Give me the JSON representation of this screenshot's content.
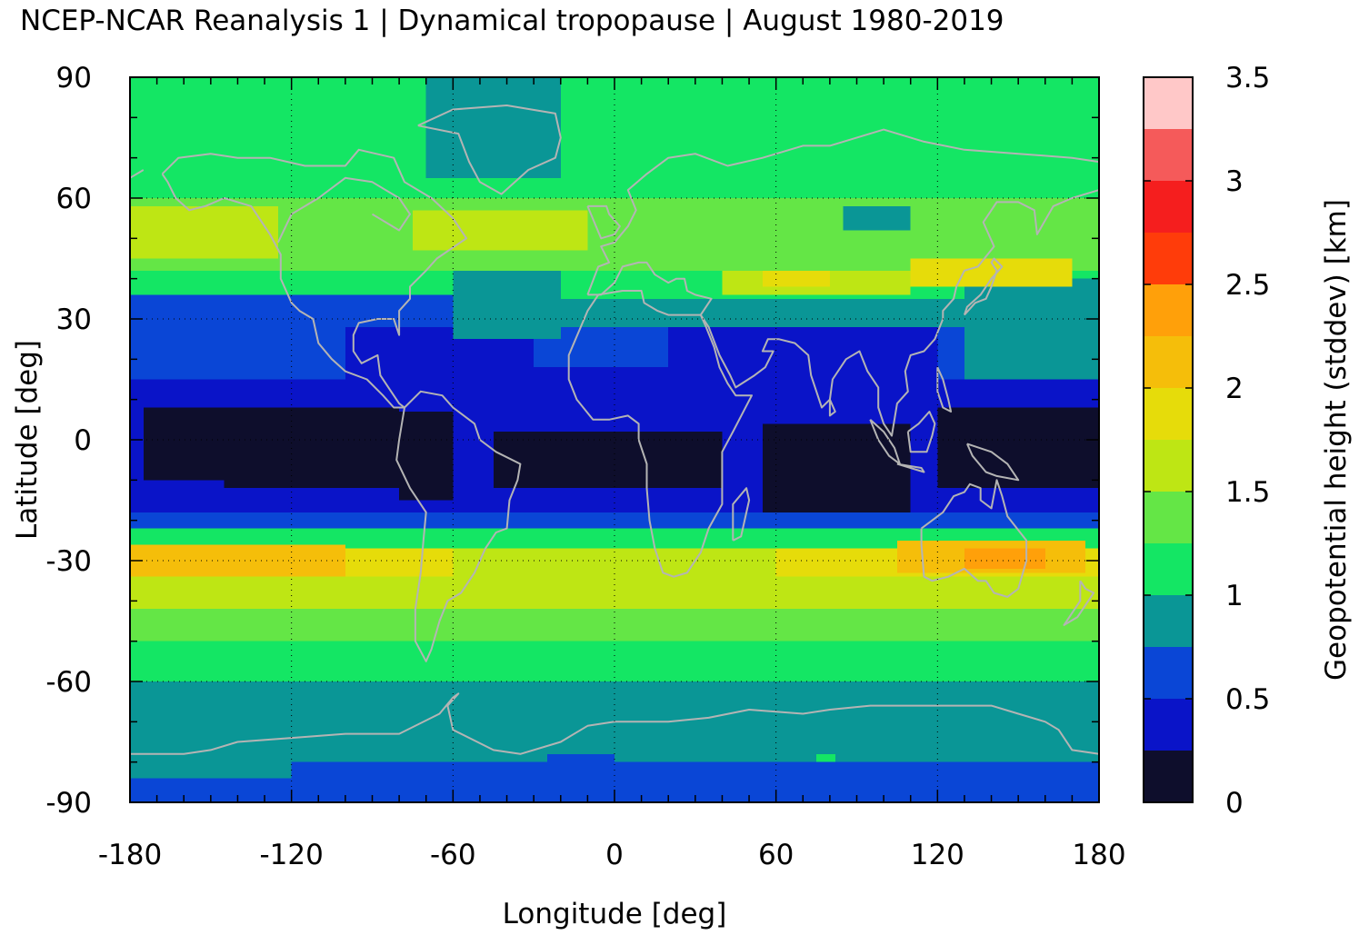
{
  "chart_data": {
    "type": "heatmap",
    "title": "NCEP-NCAR Reanalysis 1 | Dynamical tropopause | August 1980-2019",
    "xlabel": "Longitude [deg]",
    "ylabel": "Latitude [deg]",
    "xlim": [
      -180,
      180
    ],
    "ylim": [
      -90,
      90
    ],
    "x_ticks": [
      "-180",
      "-120",
      "-60",
      "0",
      "60",
      "120",
      "180"
    ],
    "y_ticks": [
      "90",
      "60",
      "30",
      "0",
      "-30",
      "-60",
      "-90"
    ],
    "grid": true,
    "grid_style": "dotted",
    "coastlines": true,
    "coastline_color": "#b4b4b4",
    "colorbar": {
      "label": "Geopotential height (stddev) [km]",
      "placement": "right",
      "range": [
        0,
        3.5
      ],
      "ticks": [
        "0",
        "0.5",
        "1",
        "1.5",
        "2",
        "2.5",
        "3",
        "3.5"
      ],
      "levels": [
        {
          "from": 0.0,
          "to": 0.25,
          "color": "#0e0e2c"
        },
        {
          "from": 0.25,
          "to": 0.5,
          "color": "#0a14c8"
        },
        {
          "from": 0.5,
          "to": 0.75,
          "color": "#0a46d6"
        },
        {
          "from": 0.75,
          "to": 1.0,
          "color": "#0a9696"
        },
        {
          "from": 1.0,
          "to": 1.25,
          "color": "#14e664"
        },
        {
          "from": 1.25,
          "to": 1.5,
          "color": "#64e646"
        },
        {
          "from": 1.5,
          "to": 1.75,
          "color": "#bee614"
        },
        {
          "from": 1.75,
          "to": 2.0,
          "color": "#e6dc0a"
        },
        {
          "from": 2.0,
          "to": 2.25,
          "color": "#f5be0a"
        },
        {
          "from": 2.25,
          "to": 2.5,
          "color": "#ffa00a"
        },
        {
          "from": 2.5,
          "to": 2.75,
          "color": "#ff3c0a"
        },
        {
          "from": 2.75,
          "to": 3.0,
          "color": "#f51e1e"
        },
        {
          "from": 3.0,
          "to": 3.25,
          "color": "#f55a5a"
        },
        {
          "from": 3.25,
          "to": 3.5,
          "color": "#ffc8c8"
        }
      ]
    },
    "zonal_profile": [
      {
        "lat_from": 70,
        "lat_to": 90,
        "value": 1.1
      },
      {
        "lat_from": 60,
        "lat_to": 70,
        "value": 1.15
      },
      {
        "lat_from": 50,
        "lat_to": 60,
        "value": 1.35
      },
      {
        "lat_from": 42,
        "lat_to": 50,
        "value": 1.3
      },
      {
        "lat_from": 35,
        "lat_to": 42,
        "value": 1.1
      },
      {
        "lat_from": 28,
        "lat_to": 35,
        "value": 0.8
      },
      {
        "lat_from": 22,
        "lat_to": 28,
        "value": 0.65
      },
      {
        "lat_from": 15,
        "lat_to": 22,
        "value": 0.6
      },
      {
        "lat_from": 8,
        "lat_to": 15,
        "value": 0.4
      },
      {
        "lat_from": -12,
        "lat_to": 8,
        "value": 0.15
      },
      {
        "lat_from": -18,
        "lat_to": -12,
        "value": 0.4
      },
      {
        "lat_from": -22,
        "lat_to": -18,
        "value": 0.6
      },
      {
        "lat_from": -27,
        "lat_to": -22,
        "value": 1.1
      },
      {
        "lat_from": -34,
        "lat_to": -27,
        "value": 1.85
      },
      {
        "lat_from": -42,
        "lat_to": -34,
        "value": 1.6
      },
      {
        "lat_from": -50,
        "lat_to": -42,
        "value": 1.35
      },
      {
        "lat_from": -60,
        "lat_to": -50,
        "value": 1.1
      },
      {
        "lat_from": -68,
        "lat_to": -60,
        "value": 0.9
      },
      {
        "lat_from": -80,
        "lat_to": -68,
        "value": 0.85
      },
      {
        "lat_from": -90,
        "lat_to": -80,
        "value": 0.6
      }
    ],
    "regions": [
      {
        "lon": [
          20,
          120
        ],
        "lat": [
          -15,
          28
        ],
        "value": 0.4
      },
      {
        "lon": [
          -100,
          20
        ],
        "lat": [
          -18,
          28
        ],
        "value": 0.4
      },
      {
        "lon": [
          -180,
          -100
        ],
        "lat": [
          -18,
          15
        ],
        "value": 0.4
      },
      {
        "lon": [
          -30,
          20
        ],
        "lat": [
          18,
          28
        ],
        "value": 0.6
      },
      {
        "lon": [
          130,
          180
        ],
        "lat": [
          15,
          40
        ],
        "value": 0.85
      },
      {
        "lon": [
          -60,
          -20
        ],
        "lat": [
          25,
          42
        ],
        "value": 0.85
      },
      {
        "lon": [
          -180,
          -60
        ],
        "lat": [
          28,
          36
        ],
        "value": 0.6
      },
      {
        "lon": [
          -175,
          -145
        ],
        "lat": [
          -10,
          8
        ],
        "value": 0.15
      },
      {
        "lon": [
          -145,
          -80
        ],
        "lat": [
          -12,
          8
        ],
        "value": 0.15
      },
      {
        "lon": [
          -80,
          -60
        ],
        "lat": [
          -15,
          7
        ],
        "value": 0.15
      },
      {
        "lon": [
          -45,
          40
        ],
        "lat": [
          -12,
          2
        ],
        "value": 0.15
      },
      {
        "lon": [
          55,
          110
        ],
        "lat": [
          -18,
          4
        ],
        "value": 0.15
      },
      {
        "lon": [
          -180,
          -125
        ],
        "lat": [
          45,
          58
        ],
        "value": 1.6
      },
      {
        "lon": [
          -75,
          -10
        ],
        "lat": [
          47,
          57
        ],
        "value": 1.6
      },
      {
        "lon": [
          40,
          110
        ],
        "lat": [
          36,
          42
        ],
        "value": 1.6
      },
      {
        "lon": [
          55,
          80
        ],
        "lat": [
          38,
          42
        ],
        "value": 1.85
      },
      {
        "lon": [
          110,
          170
        ],
        "lat": [
          38,
          45
        ],
        "value": 1.85
      },
      {
        "lon": [
          120,
          175
        ],
        "lat": [
          45,
          58
        ],
        "value": 1.45
      },
      {
        "lon": [
          -70,
          -20
        ],
        "lat": [
          65,
          90
        ],
        "value": 0.85
      },
      {
        "lon": [
          85,
          110
        ],
        "lat": [
          52,
          58
        ],
        "value": 0.85
      },
      {
        "lon": [
          -180,
          -100
        ],
        "lat": [
          -34,
          -26
        ],
        "value": 2.0
      },
      {
        "lon": [
          105,
          175
        ],
        "lat": [
          -33,
          -25
        ],
        "value": 2.05
      },
      {
        "lon": [
          130,
          160
        ],
        "lat": [
          -32,
          -27
        ],
        "value": 2.25
      },
      {
        "lon": [
          -60,
          60
        ],
        "lat": [
          -42,
          -27
        ],
        "value": 1.65
      },
      {
        "lon": [
          -180,
          -120
        ],
        "lat": [
          -84,
          -74
        ],
        "value": 0.85
      },
      {
        "lon": [
          80,
          180
        ],
        "lat": [
          -90,
          -80
        ],
        "value": 0.6
      },
      {
        "lon": [
          -180,
          -120
        ],
        "lat": [
          -90,
          -84
        ],
        "value": 0.6
      },
      {
        "lon": [
          -25,
          0
        ],
        "lat": [
          -82,
          -78
        ],
        "value": 0.6
      },
      {
        "lon": [
          75,
          82
        ],
        "lat": [
          -80,
          -78
        ],
        "value": 1.1
      }
    ]
  }
}
